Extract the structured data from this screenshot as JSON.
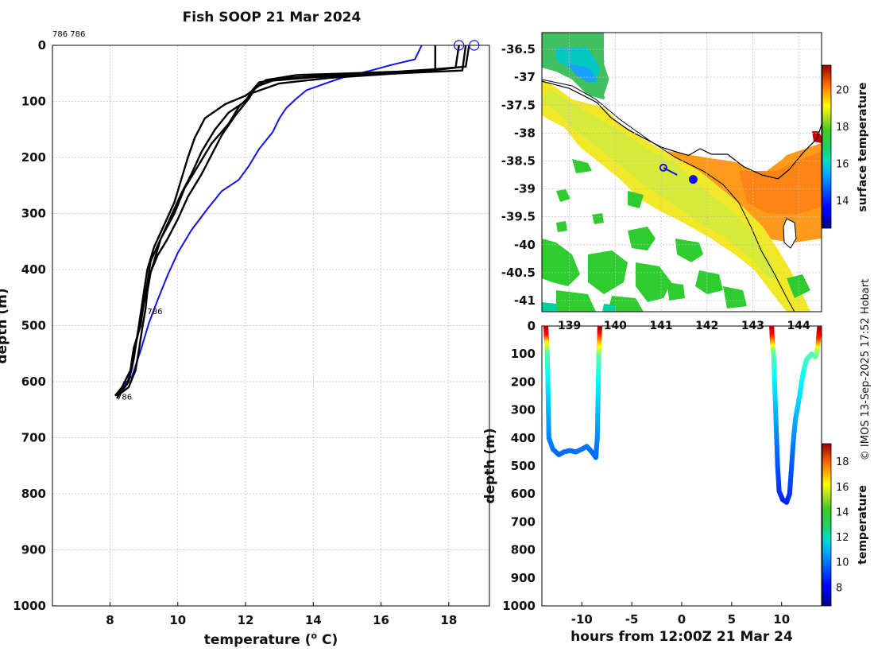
{
  "title": "Fish SOOP 21 Mar 2024",
  "credit": "© IMOS 13-Sep-2025 17:52 Hobart",
  "chart_data": [
    {
      "id": "profiles",
      "type": "line",
      "title": "Fish SOOP 21 Mar 2024",
      "xlabel": "temperature (",
      "xlabel_sup": "o",
      "xlabel_tail": " C)",
      "ylabel": "depth (m)",
      "xlim": [
        6.3,
        19.2
      ],
      "ylim": [
        1000,
        0
      ],
      "xticks": [
        8,
        10,
        12,
        14,
        16,
        18
      ],
      "yticks": [
        0,
        100,
        200,
        300,
        400,
        500,
        600,
        700,
        800,
        900,
        1000
      ],
      "grid": true,
      "annotations": [
        {
          "text": "786 786",
          "x": 6.3,
          "y": -20
        },
        {
          "text": "786",
          "x": 9.1,
          "y": 475
        },
        {
          "text": "786",
          "x": 8.2,
          "y": 628
        }
      ],
      "start_markers": [
        [
          18.3,
          0
        ],
        [
          18.75,
          0
        ]
      ],
      "series": [
        {
          "name": "blue profile",
          "color": "#1010ee",
          "points": [
            [
              17.2,
              0
            ],
            [
              17.0,
              25
            ],
            [
              16.3,
              35
            ],
            [
              15.7,
              45
            ],
            [
              15.0,
              55
            ],
            [
              14.5,
              65
            ],
            [
              13.8,
              80
            ],
            [
              13.5,
              95
            ],
            [
              13.2,
              112
            ],
            [
              13.0,
              130
            ],
            [
              12.8,
              155
            ],
            [
              12.4,
              185
            ],
            [
              12.1,
              215
            ],
            [
              11.8,
              240
            ],
            [
              11.3,
              260
            ],
            [
              10.9,
              290
            ],
            [
              10.4,
              330
            ],
            [
              10.0,
              370
            ],
            [
              9.7,
              410
            ],
            [
              9.4,
              455
            ],
            [
              9.15,
              495
            ],
            [
              8.9,
              545
            ],
            [
              8.65,
              590
            ],
            [
              8.35,
              610
            ]
          ]
        },
        {
          "name": "profile 1",
          "color": "#000000",
          "points": [
            [
              18.3,
              0
            ],
            [
              18.2,
              40
            ],
            [
              17.0,
              48
            ],
            [
              15.0,
              52
            ],
            [
              13.2,
              58
            ],
            [
              12.4,
              66
            ],
            [
              12.2,
              80
            ],
            [
              12.0,
              100
            ],
            [
              11.5,
              120
            ],
            [
              11.1,
              150
            ],
            [
              10.7,
              190
            ],
            [
              10.4,
              230
            ],
            [
              10.1,
              265
            ],
            [
              9.8,
              305
            ],
            [
              9.5,
              345
            ],
            [
              9.3,
              385
            ],
            [
              9.1,
              425
            ],
            [
              9.0,
              460
            ],
            [
              8.9,
              500
            ],
            [
              8.7,
              540
            ],
            [
              8.6,
              580
            ],
            [
              8.35,
              610
            ],
            [
              8.15,
              625
            ]
          ]
        },
        {
          "name": "profile 2",
          "color": "#000000",
          "points": [
            [
              18.5,
              0
            ],
            [
              18.4,
              45
            ],
            [
              16.5,
              50
            ],
            [
              14.0,
              57
            ],
            [
              12.8,
              63
            ],
            [
              12.4,
              72
            ],
            [
              12.0,
              90
            ],
            [
              11.4,
              105
            ],
            [
              10.8,
              130
            ],
            [
              10.5,
              165
            ],
            [
              10.3,
              200
            ],
            [
              10.1,
              240
            ],
            [
              9.9,
              280
            ],
            [
              9.6,
              320
            ],
            [
              9.3,
              360
            ],
            [
              9.1,
              400
            ],
            [
              9.0,
              440
            ],
            [
              8.9,
              480
            ],
            [
              8.8,
              520
            ],
            [
              8.7,
              560
            ],
            [
              8.55,
              600
            ],
            [
              8.2,
              630
            ]
          ]
        },
        {
          "name": "profile 3",
          "color": "#000000",
          "points": [
            [
              17.6,
              0
            ],
            [
              17.6,
              45
            ],
            [
              16.0,
              52
            ],
            [
              14.5,
              58
            ],
            [
              13.0,
              68
            ],
            [
              12.2,
              85
            ],
            [
              11.8,
              110
            ],
            [
              11.5,
              140
            ],
            [
              11.0,
              175
            ],
            [
              10.6,
              215
            ],
            [
              10.2,
              255
            ],
            [
              9.9,
              300
            ],
            [
              9.5,
              345
            ],
            [
              9.2,
              385
            ],
            [
              9.1,
              425
            ],
            [
              9.0,
              460
            ],
            [
              8.9,
              495
            ],
            [
              8.75,
              535
            ],
            [
              8.65,
              575
            ],
            [
              8.5,
              605
            ],
            [
              8.2,
              622
            ]
          ]
        },
        {
          "name": "profile 4",
          "color": "#000000",
          "points": [
            [
              18.6,
              0
            ],
            [
              18.5,
              38
            ],
            [
              17.5,
              43
            ],
            [
              16.5,
              47
            ],
            [
              15.0,
              50
            ],
            [
              13.5,
              53
            ],
            [
              12.6,
              62
            ],
            [
              12.3,
              75
            ],
            [
              12.1,
              95
            ],
            [
              11.7,
              125
            ],
            [
              11.3,
              160
            ],
            [
              11.0,
              195
            ],
            [
              10.7,
              230
            ],
            [
              10.3,
              270
            ],
            [
              10.0,
              310
            ],
            [
              9.7,
              345
            ],
            [
              9.4,
              375
            ],
            [
              9.2,
              405
            ],
            [
              9.1,
              440
            ],
            [
              9.05,
              470
            ],
            [
              8.95,
              505
            ],
            [
              8.85,
              545
            ],
            [
              8.75,
              580
            ],
            [
              8.55,
              610
            ],
            [
              8.2,
              626
            ]
          ]
        }
      ]
    },
    {
      "id": "map",
      "type": "heatmap",
      "colorbar_label": "surface temperature",
      "colorbar_ticks": [
        14,
        16,
        18,
        20
      ],
      "colorbar_range": [
        12.5,
        21.3
      ],
      "xticks": [
        139,
        140,
        141,
        142,
        143,
        144
      ],
      "yticks": [
        -36.5,
        -37,
        -37.5,
        -38,
        -38.5,
        -39,
        -39.5,
        -40,
        -40.5,
        -41
      ],
      "xlim": [
        138.4,
        144.5
      ],
      "ylim": [
        -41.2,
        -36.2
      ],
      "track": [
        [
          141.05,
          -38.62
        ],
        [
          141.35,
          -38.75
        ]
      ],
      "track_markers": [
        [
          141.05,
          -38.62
        ],
        [
          141.7,
          -38.83
        ]
      ],
      "coast": [
        [
          138.4,
          -37.07
        ],
        [
          139.0,
          -37.2
        ],
        [
          139.6,
          -37.45
        ],
        [
          139.9,
          -37.72
        ],
        [
          140.3,
          -37.95
        ],
        [
          140.6,
          -38.08
        ],
        [
          141.0,
          -38.25
        ],
        [
          141.3,
          -38.33
        ],
        [
          141.6,
          -38.4
        ],
        [
          141.85,
          -38.28
        ],
        [
          142.1,
          -38.38
        ],
        [
          142.45,
          -38.38
        ],
        [
          142.8,
          -38.6
        ],
        [
          143.2,
          -38.75
        ],
        [
          143.55,
          -38.82
        ],
        [
          143.8,
          -38.65
        ],
        [
          144.1,
          -38.35
        ],
        [
          144.4,
          -38.1
        ],
        [
          144.5,
          -37.85
        ]
      ]
    },
    {
      "id": "timeseries",
      "type": "scatter",
      "xlabel": "hours from 12:00Z 21 Mar 24",
      "ylabel": "depth (m)",
      "xlim": [
        -14,
        14
      ],
      "ylim": [
        1000,
        0
      ],
      "xticks": [
        -10,
        -5,
        0,
        5,
        10
      ],
      "yticks": [
        0,
        100,
        200,
        300,
        400,
        500,
        600,
        700,
        800,
        900,
        1000
      ],
      "colorbar_label": "temperature",
      "colorbar_ticks": [
        8,
        10,
        12,
        14,
        16,
        18
      ],
      "colorbar_range": [
        6.5,
        19.4
      ],
      "casts": [
        [
          [
            -13.6,
            0,
            19
          ],
          [
            -13.55,
            40,
            17.5
          ],
          [
            -13.5,
            60,
            15
          ],
          [
            -13.45,
            100,
            12.5
          ],
          [
            -13.4,
            200,
            11.2
          ],
          [
            -13.35,
            300,
            10.5
          ],
          [
            -13.3,
            400,
            9.8
          ],
          [
            -12.9,
            440,
            9.6
          ],
          [
            -12.3,
            460,
            9.4
          ],
          [
            -11.8,
            450,
            9.5
          ],
          [
            -11.2,
            445,
            9.5
          ],
          [
            -10.6,
            450,
            9.5
          ],
          [
            -10.0,
            440,
            9.6
          ],
          [
            -9.5,
            430,
            9.6
          ],
          [
            -9.0,
            450,
            9.5
          ],
          [
            -8.6,
            470,
            9.4
          ],
          [
            -8.45,
            400,
            9.8
          ],
          [
            -8.4,
            300,
            10.5
          ],
          [
            -8.35,
            200,
            11.2
          ],
          [
            -8.3,
            100,
            12.5
          ],
          [
            -8.25,
            50,
            15.5
          ],
          [
            -8.2,
            0,
            19
          ]
        ],
        [
          [
            9.0,
            0,
            19
          ],
          [
            9.05,
            40,
            17.5
          ],
          [
            9.1,
            70,
            15
          ],
          [
            9.2,
            100,
            12.5
          ],
          [
            9.3,
            200,
            11.2
          ],
          [
            9.4,
            300,
            10.5
          ],
          [
            9.5,
            400,
            9.8
          ],
          [
            9.6,
            500,
            9.2
          ],
          [
            9.75,
            590,
            8.8
          ],
          [
            10.1,
            620,
            8.6
          ],
          [
            10.5,
            630,
            8.5
          ],
          [
            10.8,
            600,
            8.7
          ],
          [
            11.0,
            500,
            9.2
          ],
          [
            11.2,
            400,
            9.8
          ],
          [
            11.4,
            330,
            10.3
          ],
          [
            11.6,
            290,
            10.6
          ],
          [
            11.8,
            250,
            10.9
          ],
          [
            12.0,
            200,
            11.2
          ],
          [
            12.2,
            160,
            11.6
          ],
          [
            12.5,
            120,
            12.0
          ],
          [
            13.0,
            100,
            12.3
          ],
          [
            13.4,
            110,
            12.3
          ],
          [
            13.6,
            80,
            13.5
          ],
          [
            13.7,
            40,
            17.0
          ],
          [
            13.8,
            0,
            19
          ]
        ]
      ]
    }
  ]
}
